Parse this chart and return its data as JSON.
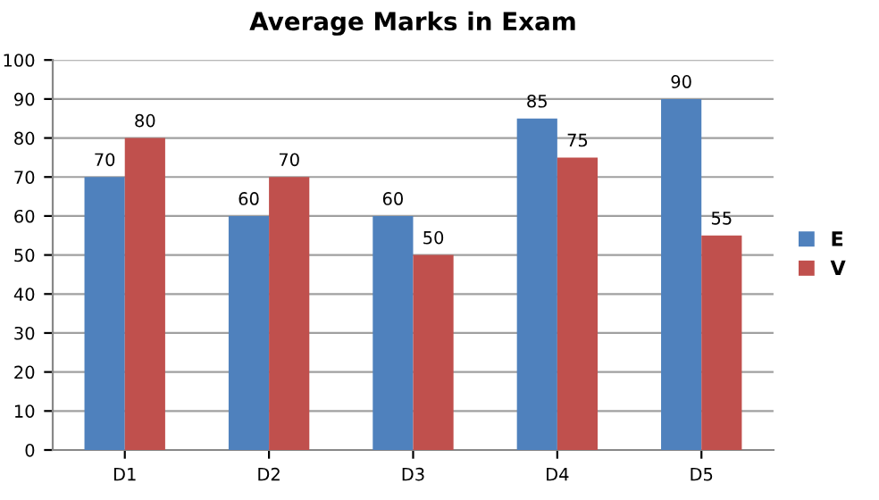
{
  "chart_data": {
    "type": "bar",
    "title": "Average Marks in Exam",
    "categories": [
      "D1",
      "D2",
      "D3",
      "D4",
      "D5"
    ],
    "series": [
      {
        "name": "E",
        "color": "#4f81bd",
        "values": [
          70,
          60,
          60,
          85,
          90
        ]
      },
      {
        "name": "V",
        "color": "#c0504d",
        "values": [
          80,
          70,
          50,
          75,
          55
        ]
      }
    ],
    "ylim": [
      0,
      100
    ],
    "yticks": [
      0,
      10,
      20,
      30,
      40,
      50,
      60,
      70,
      80,
      90,
      100
    ],
    "grid": "y",
    "legend": "right",
    "data_labels": true
  }
}
